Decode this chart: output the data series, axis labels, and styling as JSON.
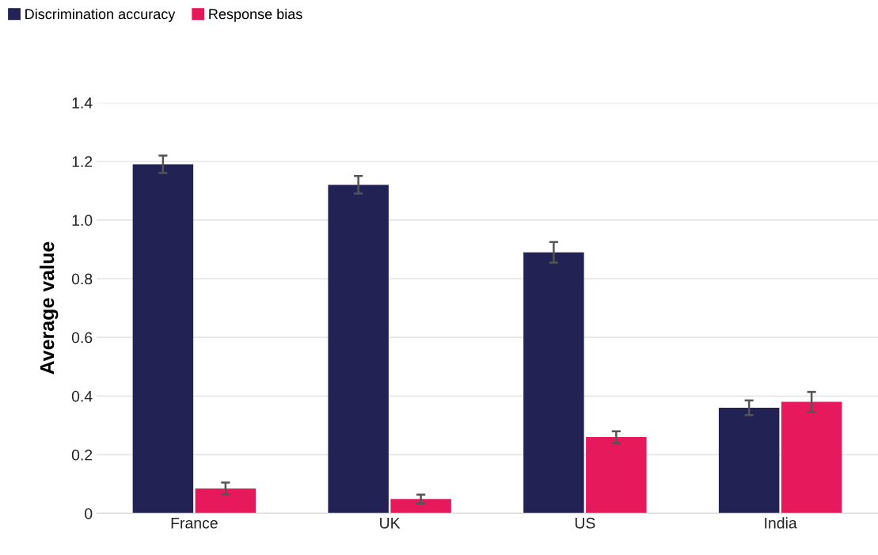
{
  "chart_data": {
    "type": "bar",
    "ylabel": "Average value",
    "categories": [
      "France",
      "UK",
      "US",
      "India"
    ],
    "series": [
      {
        "name": "Discrimination accuracy",
        "color": "#222255",
        "values": [
          1.19,
          1.12,
          0.89,
          0.36
        ],
        "errors": [
          0.03,
          0.03,
          0.035,
          0.025
        ]
      },
      {
        "name": "Response bias",
        "color": "#e6195c",
        "values": [
          0.085,
          0.049,
          0.26,
          0.38
        ],
        "errors": [
          0.02,
          0.015,
          0.02,
          0.034
        ]
      }
    ],
    "ylim": [
      0,
      1.4
    ],
    "yticks": [
      {
        "value": 0,
        "label": "0"
      },
      0.2,
      0.4,
      0.6,
      0.8,
      {
        "value": 1.0,
        "label": "1.0"
      },
      1.2,
      1.4
    ],
    "grid": "y",
    "legend": "top left"
  }
}
